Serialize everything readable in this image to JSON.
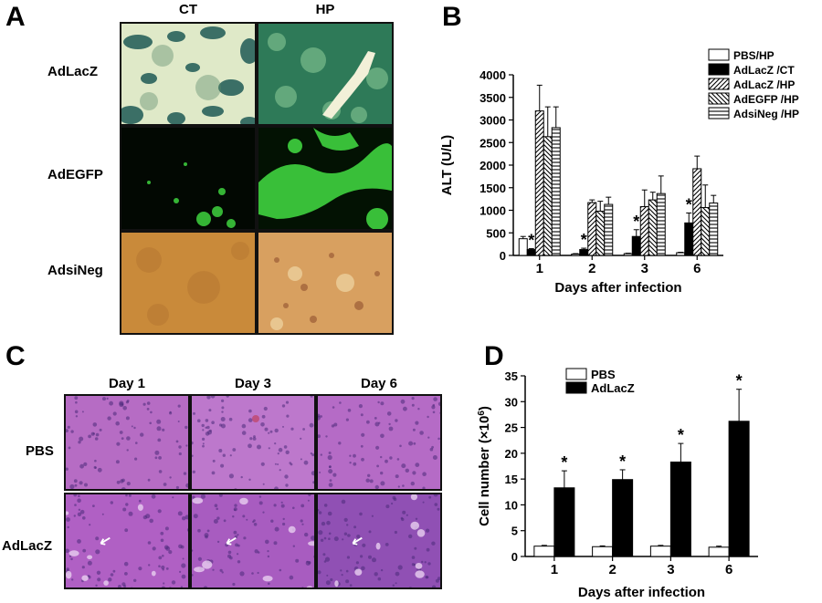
{
  "panels": {
    "A": {
      "label": "A",
      "columns": [
        "CT",
        "HP"
      ],
      "rows": [
        "AdLacZ",
        "AdEGFP",
        "AdsiNeg"
      ]
    },
    "B": {
      "label": "B"
    },
    "C": {
      "label": "C",
      "columns": [
        "Day 1",
        "Day 3",
        "Day 6"
      ],
      "rows": [
        "PBS",
        "AdLacZ"
      ]
    },
    "D": {
      "label": "D"
    }
  },
  "colors": {
    "stain_lacz_light": "#e8f0d0",
    "stain_lacz_blue": "#1f5a55",
    "stain_egfp_green": "#3fd23f",
    "stain_dab_brown": "#c98a3a",
    "he_purple": "#b868c8",
    "he_nucleus": "#5a3a8a"
  },
  "chart_data": [
    {
      "type": "bar",
      "panel": "B",
      "ylabel": "ALT (U/L)",
      "xlabel": "Days after infection",
      "categories": [
        "1",
        "2",
        "3",
        "6"
      ],
      "ylim": [
        0,
        4000
      ],
      "yticks": [
        0,
        500,
        1000,
        1500,
        2000,
        2500,
        3000,
        3500,
        4000
      ],
      "legend_position": "top-right",
      "series": [
        {
          "name": "PBS/HP",
          "pattern": "white",
          "values": [
            370,
            30,
            40,
            60
          ],
          "errors": [
            50,
            10,
            10,
            10
          ]
        },
        {
          "name": "AdLacZ /CT",
          "pattern": "black",
          "values": [
            130,
            130,
            420,
            720
          ],
          "errors": [
            20,
            30,
            150,
            220
          ]
        },
        {
          "name": "AdLacZ /HP",
          "pattern": "diag-right",
          "values": [
            3200,
            1170,
            1080,
            1920
          ],
          "errors": [
            570,
            60,
            370,
            280
          ]
        },
        {
          "name": "AdEGFP /HP",
          "pattern": "diag-left",
          "values": [
            2630,
            980,
            1230,
            1060
          ],
          "errors": [
            660,
            220,
            170,
            500
          ]
        },
        {
          "name": "AdsiNeg /HP",
          "pattern": "horizontal",
          "values": [
            2830,
            1130,
            1370,
            1160
          ],
          "errors": [
            460,
            160,
            390,
            170
          ]
        }
      ],
      "annotations": [
        {
          "text": "*",
          "category": "1",
          "series": "AdLacZ /CT"
        },
        {
          "text": "*",
          "category": "2",
          "series": "AdLacZ /CT"
        },
        {
          "text": "*",
          "category": "3",
          "series": "AdLacZ /CT"
        },
        {
          "text": "*",
          "category": "6",
          "series": "AdLacZ /CT"
        }
      ]
    },
    {
      "type": "bar",
      "panel": "D",
      "ylabel": "Cell number (×10",
      "ylabel_exp": "6",
      "ylabel_close": ")",
      "xlabel": "Days after infection",
      "categories": [
        "1",
        "2",
        "3",
        "6"
      ],
      "ylim": [
        0,
        35
      ],
      "yticks": [
        0,
        5,
        10,
        15,
        20,
        25,
        30,
        35
      ],
      "legend_position": "top-left",
      "series": [
        {
          "name": "PBS",
          "pattern": "white",
          "values": [
            2.0,
            1.9,
            2.0,
            1.8
          ],
          "errors": [
            0.15,
            0.15,
            0.15,
            0.2
          ]
        },
        {
          "name": "AdLacZ",
          "pattern": "black",
          "values": [
            13.3,
            14.9,
            18.3,
            26.2
          ],
          "errors": [
            3.3,
            1.9,
            3.6,
            6.2
          ]
        }
      ],
      "annotations": [
        {
          "text": "*",
          "category": "1",
          "series": "AdLacZ"
        },
        {
          "text": "*",
          "category": "2",
          "series": "AdLacZ"
        },
        {
          "text": "*",
          "category": "3",
          "series": "AdLacZ"
        },
        {
          "text": "*",
          "category": "6",
          "series": "AdLacZ"
        }
      ]
    }
  ]
}
